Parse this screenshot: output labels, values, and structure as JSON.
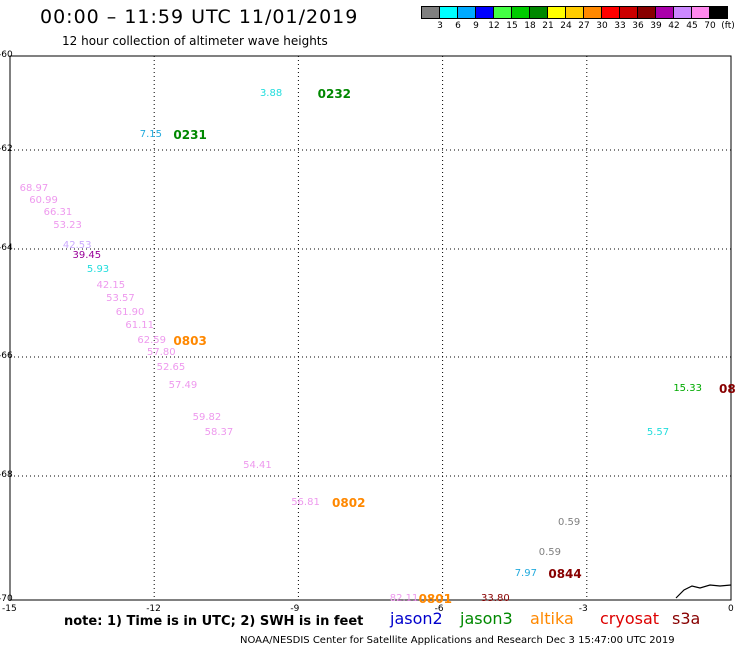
{
  "header": {
    "title": "00:00 – 11:59 UTC 11/01/2019",
    "subtitle": "12 hour collection of altimeter wave heights"
  },
  "legend": {
    "colors": [
      "#808080",
      "#00ffff",
      "#00aaff",
      "#0000ff",
      "#44ff44",
      "#00cc00",
      "#008800",
      "#ffff00",
      "#ffcc00",
      "#ff8800",
      "#ff0000",
      "#cc0000",
      "#880000",
      "#aa00aa",
      "#cc88ff",
      "#ff88ee",
      "#000000"
    ],
    "labels": [
      "3",
      "6",
      "9",
      "12",
      "15",
      "18",
      "21",
      "24",
      "27",
      "30",
      "33",
      "36",
      "39",
      "42",
      "45",
      "70",
      "(ft)"
    ]
  },
  "axes": {
    "lat_ticks": [
      "-60",
      "-62",
      "-64",
      "-66",
      "-68",
      "-70"
    ],
    "lon_ticks": [
      "-15",
      "-12",
      "-9",
      "-6",
      "-3",
      "0"
    ]
  },
  "observations": [
    {
      "text": "3.88",
      "color": "#22dddd",
      "kind": "val",
      "lon": -9.8,
      "lat": -60.83
    },
    {
      "text": "0232",
      "color": "#008800",
      "kind": "time",
      "lon": -8.6,
      "lat": -60.83
    },
    {
      "text": "7.15",
      "color": "#22aadd",
      "kind": "val",
      "lon": -12.3,
      "lat": -61.7
    },
    {
      "text": "0231",
      "color": "#008800",
      "kind": "time",
      "lon": -11.6,
      "lat": -61.7
    },
    {
      "text": "68.97",
      "color": "#ee99ee",
      "kind": "val",
      "lon": -14.8,
      "lat": -62.8
    },
    {
      "text": "60.99",
      "color": "#ee99ee",
      "kind": "val",
      "lon": -14.6,
      "lat": -63.05
    },
    {
      "text": "66.31",
      "color": "#ee99ee",
      "kind": "val",
      "lon": -14.3,
      "lat": -63.3
    },
    {
      "text": "53.23",
      "color": "#ee99ee",
      "kind": "val",
      "lon": -14.1,
      "lat": -63.55
    },
    {
      "text": "42.53",
      "color": "#ccaaff",
      "kind": "val",
      "lon": -13.9,
      "lat": -63.95
    },
    {
      "text": "39.45",
      "color": "#990099",
      "kind": "val",
      "lon": -13.7,
      "lat": -64.15
    },
    {
      "text": "5.93",
      "color": "#22dddd",
      "kind": "val",
      "lon": -13.4,
      "lat": -64.4
    },
    {
      "text": "42.15",
      "color": "#ee99ee",
      "kind": "val",
      "lon": -13.2,
      "lat": -64.7
    },
    {
      "text": "53.57",
      "color": "#ee99ee",
      "kind": "val",
      "lon": -13.0,
      "lat": -64.95
    },
    {
      "text": "61.90",
      "color": "#ee99ee",
      "kind": "val",
      "lon": -12.8,
      "lat": -65.2
    },
    {
      "text": "61.11",
      "color": "#ee99ee",
      "kind": "val",
      "lon": -12.6,
      "lat": -65.45
    },
    {
      "text": "62.59",
      "color": "#ee99ee",
      "kind": "val",
      "lon": -12.35,
      "lat": -65.72
    },
    {
      "text": "0803",
      "color": "#ff8800",
      "kind": "time",
      "lon": -11.6,
      "lat": -65.72
    },
    {
      "text": "57.80",
      "color": "#ee99ee",
      "kind": "val",
      "lon": -12.15,
      "lat": -65.95
    },
    {
      "text": "52.65",
      "color": "#ee99ee",
      "kind": "val",
      "lon": -11.95,
      "lat": -66.2
    },
    {
      "text": "57.49",
      "color": "#ee99ee",
      "kind": "val",
      "lon": -11.7,
      "lat": -66.5
    },
    {
      "text": "59.82",
      "color": "#ee99ee",
      "kind": "val",
      "lon": -11.2,
      "lat": -67.05
    },
    {
      "text": "58.37",
      "color": "#ee99ee",
      "kind": "val",
      "lon": -10.95,
      "lat": -67.3
    },
    {
      "text": "54.41",
      "color": "#ee99ee",
      "kind": "val",
      "lon": -10.15,
      "lat": -67.85
    },
    {
      "text": "56.81",
      "color": "#ee99ee",
      "kind": "val",
      "lon": -9.15,
      "lat": -68.45
    },
    {
      "text": "0802",
      "color": "#ff8800",
      "kind": "time",
      "lon": -8.3,
      "lat": -68.45
    },
    {
      "text": "0.59",
      "color": "#808080",
      "kind": "val",
      "lon": -3.6,
      "lat": -68.78
    },
    {
      "text": "0.59",
      "color": "#808080",
      "kind": "val",
      "lon": -4.0,
      "lat": -69.25
    },
    {
      "text": "7.97",
      "color": "#22aadd",
      "kind": "val",
      "lon": -4.5,
      "lat": -69.6
    },
    {
      "text": "0844",
      "color": "#880000",
      "kind": "time",
      "lon": -3.8,
      "lat": -69.6
    },
    {
      "text": "33.80",
      "color": "#880000",
      "kind": "val",
      "lon": -5.2,
      "lat": -70.07
    },
    {
      "text": "82.11",
      "color": "#ee99ee",
      "kind": "val",
      "lon": -7.1,
      "lat": -70.3
    },
    {
      "text": "0801",
      "color": "#ff8800",
      "kind": "time",
      "lon": -6.5,
      "lat": -70.3
    },
    {
      "text": "15.33",
      "color": "#00aa00",
      "kind": "val",
      "lon": -1.2,
      "lat": -66.55
    },
    {
      "text": "08",
      "color": "#880000",
      "kind": "time",
      "lon": -0.25,
      "lat": -66.55
    },
    {
      "text": "5.57",
      "color": "#22dddd",
      "kind": "val",
      "lon": -1.75,
      "lat": -67.3
    }
  ],
  "footer": {
    "note": "note: 1) Time is in UTC; 2) SWH is in feet",
    "satellites": [
      {
        "name": "jason2",
        "color": "#0000cc"
      },
      {
        "name": "jason3",
        "color": "#008800"
      },
      {
        "name": "altika",
        "color": "#ff8800"
      },
      {
        "name": "cryosat",
        "color": "#dd0000"
      },
      {
        "name": "s3a",
        "color": "#880000"
      }
    ],
    "credit": "NOAA/NESDIS Center for Satellite Applications and Research     Dec  3 15:47:00 UTC 2019"
  }
}
